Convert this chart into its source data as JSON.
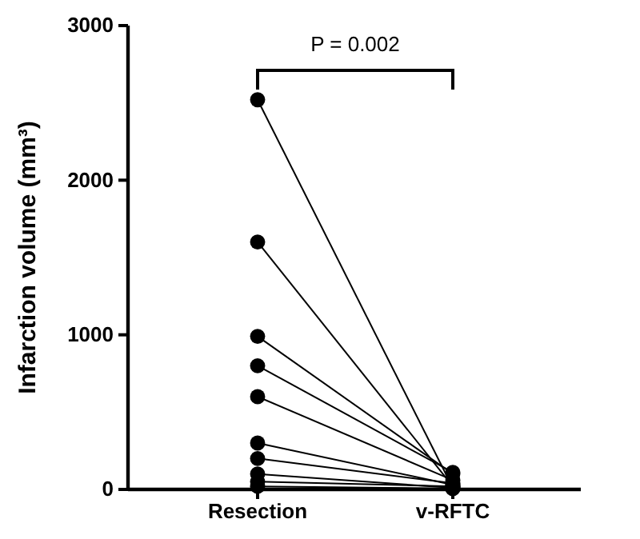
{
  "chart_data": {
    "type": "line",
    "categories": [
      "Resection",
      "v-RFTC"
    ],
    "ylabel": "Infarction volume (mm³)",
    "ylim": [
      0,
      3000
    ],
    "yticks": [
      0,
      1000,
      2000,
      3000
    ],
    "grid": false,
    "marker": "circle",
    "line_style": "solid",
    "annotations": [
      "P = 0.002"
    ],
    "series": [
      {
        "color": "#000000",
        "values": [
          2520,
          10
        ]
      },
      {
        "color": "#000000",
        "values": [
          1600,
          20
        ]
      },
      {
        "color": "#000000",
        "values": [
          990,
          100
        ]
      },
      {
        "color": "#000000",
        "values": [
          800,
          110
        ]
      },
      {
        "color": "#000000",
        "values": [
          600,
          60
        ]
      },
      {
        "color": "#000000",
        "values": [
          300,
          30
        ]
      },
      {
        "color": "#000000",
        "values": [
          200,
          40
        ]
      },
      {
        "color": "#000000",
        "values": [
          100,
          10
        ]
      },
      {
        "color": "#000000",
        "values": [
          50,
          20
        ]
      },
      {
        "color": "#000000",
        "values": [
          20,
          5
        ]
      }
    ]
  }
}
